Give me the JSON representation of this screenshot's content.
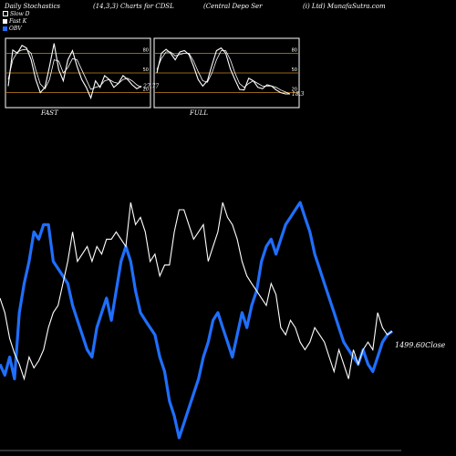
{
  "header": {
    "left": "Daily Stochastics",
    "params": "(14,3,3) Charts for CDSL",
    "company": "(Central Depo  Ser",
    "source": "(i) Ltd) MunafaSutra.com"
  },
  "legend": [
    {
      "label": "Slow  D",
      "color": "#ffffff",
      "swatch": "outline"
    },
    {
      "label": "Fast K",
      "color": "#ffffff",
      "swatch": "fill"
    },
    {
      "label": "OBV",
      "color": "#1f6fff",
      "swatch": "fill"
    }
  ],
  "colors": {
    "background": "#000000",
    "price": "#ffffff",
    "obv": "#1f6fff",
    "refline": "#c8871a",
    "panel_border": "#ffffff"
  },
  "chart_data": [
    {
      "type": "line",
      "panel": "FAST",
      "title": "FAST",
      "ylim": [
        0,
        100
      ],
      "yticks": [
        20,
        50,
        80
      ],
      "reference_lines": [
        20,
        50,
        80
      ],
      "last_value_label": "27.77",
      "series": [
        {
          "name": "Fast K",
          "values": [
            30,
            85,
            80,
            92,
            88,
            70,
            40,
            20,
            28,
            60,
            95,
            55,
            38,
            70,
            84,
            60,
            40,
            28,
            12,
            38,
            28,
            46,
            40,
            28,
            34,
            46,
            40,
            32,
            26,
            30
          ]
        },
        {
          "name": "Slow  D",
          "values": [
            40,
            70,
            82,
            85,
            86,
            80,
            55,
            33,
            26,
            40,
            70,
            68,
            50,
            58,
            72,
            70,
            55,
            40,
            25,
            28,
            30,
            38,
            40,
            36,
            34,
            40,
            42,
            38,
            32,
            28
          ]
        }
      ]
    },
    {
      "type": "line",
      "panel": "FULL",
      "title": "FULL",
      "ylim": [
        0,
        100
      ],
      "yticks": [
        20,
        50,
        80
      ],
      "reference_lines": [
        20,
        50,
        80
      ],
      "last_value_label": "18.3",
      "series": [
        {
          "name": "Fast K",
          "values": [
            50,
            80,
            86,
            80,
            70,
            82,
            84,
            78,
            60,
            40,
            30,
            38,
            62,
            84,
            88,
            80,
            56,
            40,
            25,
            24,
            42,
            38,
            28,
            26,
            32,
            30,
            24,
            20,
            18,
            18
          ]
        },
        {
          "name": "Slow  D",
          "values": [
            55,
            72,
            82,
            82,
            76,
            78,
            80,
            80,
            68,
            52,
            38,
            36,
            50,
            70,
            84,
            84,
            70,
            50,
            34,
            28,
            34,
            38,
            34,
            30,
            30,
            30,
            28,
            24,
            21,
            18
          ]
        }
      ]
    },
    {
      "type": "line",
      "panel": "price",
      "last_value_label": "1499.60Close",
      "series": [
        {
          "name": "Close",
          "values": [
            1600,
            1556,
            1478,
            1433,
            1400,
            1356,
            1422,
            1389,
            1411,
            1444,
            1511,
            1556,
            1578,
            1644,
            1711,
            1800,
            1711,
            1733,
            1756,
            1711,
            1756,
            1733,
            1778,
            1778,
            1800,
            1778,
            1756,
            1889,
            1822,
            1844,
            1800,
            1711,
            1733,
            1667,
            1700,
            1700,
            1800,
            1867,
            1867,
            1822,
            1778,
            1800,
            1822,
            1711,
            1756,
            1800,
            1889,
            1844,
            1822,
            1778,
            1711,
            1667,
            1644,
            1622,
            1600,
            1578,
            1644,
            1611,
            1511,
            1489,
            1533,
            1511,
            1467,
            1444,
            1467,
            1511,
            1489,
            1467,
            1422,
            1378,
            1444,
            1400,
            1356,
            1444,
            1400,
            1444,
            1467,
            1444,
            1556,
            1511,
            1489,
            1500
          ]
        },
        {
          "name": "OBV",
          "values": [
            1400,
            1367,
            1422,
            1356,
            1556,
            1644,
            1711,
            1800,
            1778,
            1822,
            1822,
            1711,
            1689,
            1667,
            1644,
            1578,
            1533,
            1489,
            1444,
            1422,
            1511,
            1556,
            1600,
            1533,
            1622,
            1711,
            1756,
            1711,
            1622,
            1556,
            1533,
            1511,
            1489,
            1422,
            1378,
            1289,
            1244,
            1178,
            1222,
            1267,
            1311,
            1356,
            1422,
            1467,
            1533,
            1556,
            1511,
            1467,
            1422,
            1489,
            1556,
            1511,
            1578,
            1622,
            1711,
            1756,
            1778,
            1733,
            1778,
            1822,
            1844,
            1867,
            1889,
            1844,
            1800,
            1733,
            1689,
            1644,
            1600,
            1556,
            1511,
            1467,
            1444,
            1422,
            1400,
            1444,
            1400,
            1378,
            1422,
            1467,
            1489,
            1500
          ]
        }
      ]
    }
  ]
}
